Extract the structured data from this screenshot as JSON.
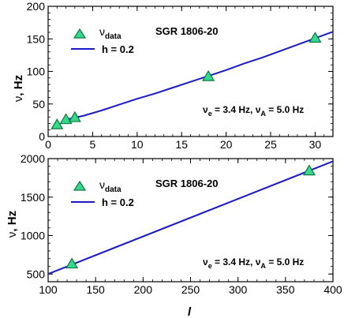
{
  "colors": {
    "line": "#1a1acc",
    "marker_fill": "#33d98c",
    "marker_stroke": "#0a7a3a",
    "axis": "#000000"
  },
  "chart_data": [
    {
      "type": "line",
      "title": "SGR 1806-20",
      "xlabel": "",
      "ylabel_symbol": "ν",
      "ylabel_unit": ", Hz",
      "xlim": [
        0,
        32
      ],
      "ylim": [
        0,
        200
      ],
      "xticks": [
        0,
        5,
        10,
        15,
        20,
        25,
        30
      ],
      "yticks": [
        0,
        50,
        100,
        150,
        200
      ],
      "legend": {
        "placement": "top-left",
        "data_symbol": "ν",
        "data_sub": "data",
        "line_label": "h = 0.2"
      },
      "annotation": {
        "p1_sym": "ν",
        "p1_sub": "e",
        "p1_val": " = 3.4 Hz, ",
        "p2_sym": "ν",
        "p2_sub": "A",
        "p2_val": " = 5.0 Hz"
      },
      "series": [
        {
          "kind": "markers",
          "x": [
            1,
            2,
            3,
            18,
            30
          ],
          "y": [
            18,
            26,
            29,
            92,
            151
          ]
        },
        {
          "kind": "line",
          "x": [
            2,
            4,
            6,
            8,
            10,
            12,
            14,
            16,
            18,
            20,
            22,
            24,
            26,
            28,
            30,
            32
          ],
          "y": [
            26,
            32,
            40,
            49,
            58,
            66,
            75,
            84,
            93,
            102,
            112,
            121,
            131,
            141,
            151,
            161
          ]
        }
      ]
    },
    {
      "type": "line",
      "title": "SGR 1806-20",
      "xlabel": "l",
      "ylabel_symbol": "ν",
      "ylabel_unit": ", Hz",
      "xlim": [
        100,
        400
      ],
      "ylim": [
        400,
        2000
      ],
      "xticks": [
        100,
        150,
        200,
        250,
        300,
        350,
        400
      ],
      "yticks": [
        500,
        1000,
        1500,
        2000
      ],
      "legend": {
        "placement": "top-left",
        "data_symbol": "ν",
        "data_sub": "data",
        "line_label": "h = 0.2"
      },
      "annotation": {
        "p1_sym": "ν",
        "p1_sub": "e",
        "p1_val": " = 3.4 Hz, ",
        "p2_sym": "ν",
        "p2_sub": "A",
        "p2_val": " = 5.0 Hz"
      },
      "series": [
        {
          "kind": "markers",
          "x": [
            125,
            375
          ],
          "y": [
            630,
            1840
          ]
        },
        {
          "kind": "line",
          "x": [
            100,
            400
          ],
          "y": [
            500,
            1965
          ]
        }
      ]
    }
  ]
}
